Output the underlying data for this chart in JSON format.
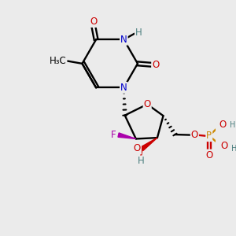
{
  "bg_color": "#ebebeb",
  "atom_colors": {
    "C": "#000000",
    "N": "#0000cc",
    "O": "#cc0000",
    "F": "#aa00aa",
    "P": "#cc8800",
    "H": "#4d8080"
  },
  "bond_color": "#000000",
  "figsize": [
    3.0,
    3.0
  ],
  "dpi": 100,
  "lw": 1.7,
  "fs": 8.5,
  "fs_small": 7.0
}
